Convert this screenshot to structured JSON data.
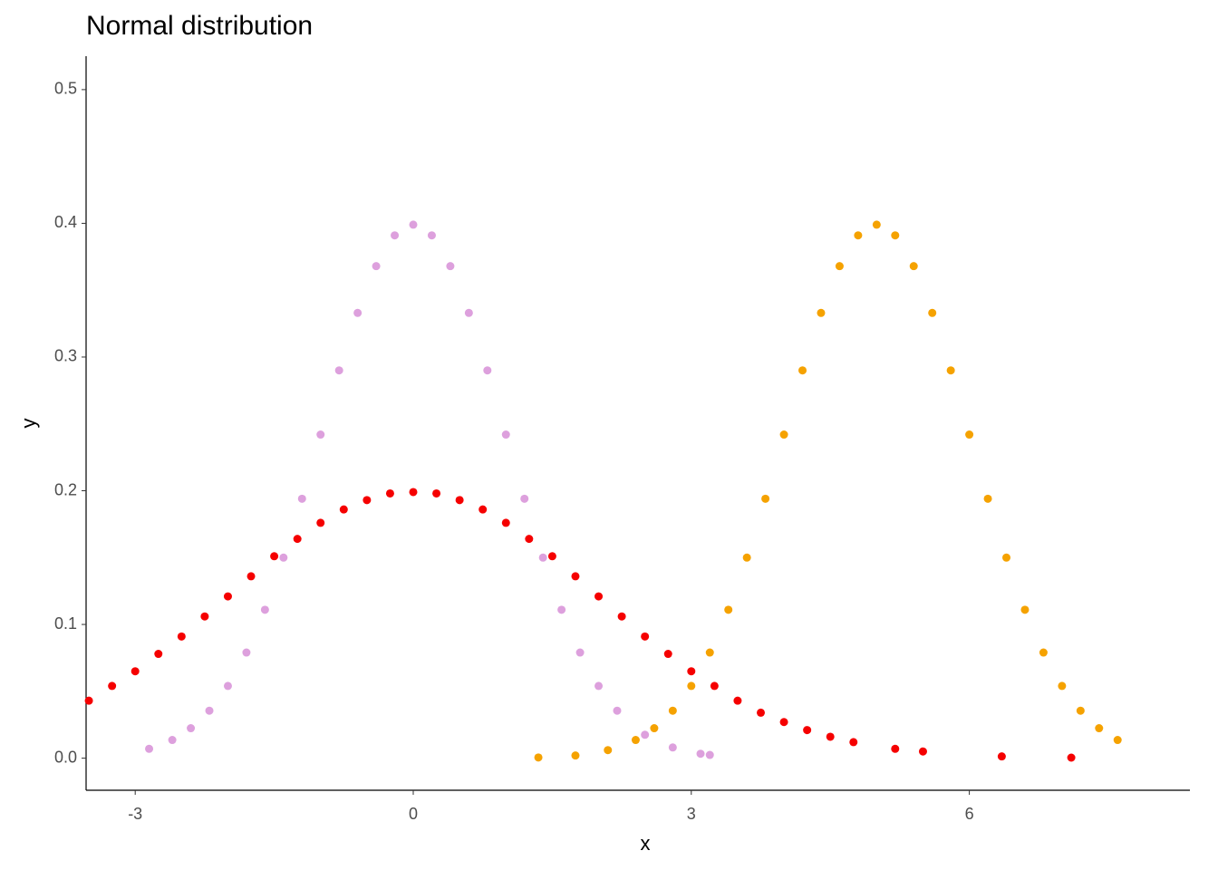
{
  "chart_data": {
    "type": "scatter",
    "title": "Normal distribution",
    "x_label": "x",
    "y_label": "y",
    "xlim": [
      -3.53,
      8.38
    ],
    "ylim": [
      -0.024,
      0.525
    ],
    "xticks": [
      -3,
      0,
      3,
      6
    ],
    "yticks": [
      {
        "value": 0,
        "label": "0.0"
      },
      0.1,
      0.2,
      0.3,
      0.4,
      0.5
    ],
    "grid": false,
    "series": [
      {
        "color": "#dda0dd",
        "x": [
          -2.85,
          -2.6,
          -2.4,
          -2.2,
          -2.0,
          -1.8,
          -1.6,
          -1.4,
          -1.2,
          -1.0,
          -0.8,
          -0.6,
          -0.4,
          -0.2,
          0,
          0.2,
          0.4,
          0.6,
          0.8,
          1.0,
          1.2,
          1.4,
          1.6,
          1.8,
          2.0,
          2.2,
          2.5,
          2.8,
          3.1,
          3.2
        ],
        "values": [
          0.007,
          0.0136,
          0.0224,
          0.0355,
          0.054,
          0.079,
          0.111,
          0.15,
          0.194,
          0.242,
          0.29,
          0.333,
          0.368,
          0.391,
          0.399,
          0.391,
          0.368,
          0.333,
          0.29,
          0.242,
          0.194,
          0.15,
          0.111,
          0.079,
          0.054,
          0.0355,
          0.0175,
          0.008,
          0.0033,
          0.0024
        ]
      },
      {
        "color": "#f50000",
        "x": [
          -3.5,
          -3.25,
          -3.0,
          -2.75,
          -2.5,
          -2.25,
          -2.0,
          -1.75,
          -1.5,
          -1.25,
          -1.0,
          -0.75,
          -0.5,
          -0.25,
          0,
          0.25,
          0.5,
          0.75,
          1.0,
          1.25,
          1.5,
          1.75,
          2.0,
          2.25,
          2.5,
          2.75,
          3.0,
          3.25,
          3.5,
          3.75,
          4.0,
          4.25,
          4.5,
          4.75,
          5.2,
          5.5,
          6.35,
          7.1
        ],
        "values": [
          0.043,
          0.054,
          0.065,
          0.078,
          0.091,
          0.106,
          0.121,
          0.136,
          0.151,
          0.164,
          0.176,
          0.186,
          0.193,
          0.198,
          0.199,
          0.198,
          0.193,
          0.186,
          0.176,
          0.164,
          0.151,
          0.136,
          0.121,
          0.106,
          0.091,
          0.078,
          0.065,
          0.054,
          0.043,
          0.034,
          0.027,
          0.021,
          0.016,
          0.012,
          0.007,
          0.005,
          0.0013,
          0.0004
        ]
      },
      {
        "color": "#f5a200",
        "x": [
          1.35,
          1.75,
          2.1,
          2.4,
          2.6,
          2.8,
          3.0,
          3.2,
          3.4,
          3.6,
          3.8,
          4.0,
          4.2,
          4.4,
          4.6,
          4.8,
          5.0,
          5.2,
          5.4,
          5.6,
          5.8,
          6.0,
          6.2,
          6.4,
          6.6,
          6.8,
          7.0,
          7.2,
          7.4,
          7.6
        ],
        "values": [
          0.0005,
          0.002,
          0.006,
          0.0136,
          0.0224,
          0.0355,
          0.054,
          0.079,
          0.111,
          0.15,
          0.194,
          0.242,
          0.29,
          0.333,
          0.368,
          0.391,
          0.399,
          0.391,
          0.368,
          0.333,
          0.29,
          0.242,
          0.194,
          0.15,
          0.111,
          0.079,
          0.054,
          0.0355,
          0.0224,
          0.0136
        ]
      }
    ]
  }
}
